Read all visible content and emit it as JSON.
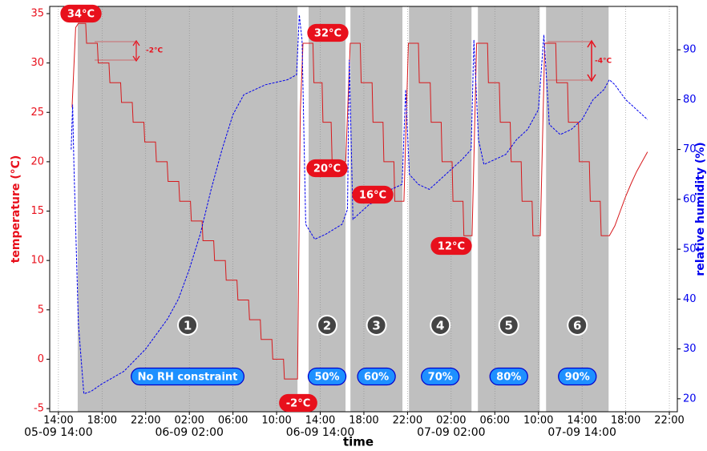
{
  "chart_data": {
    "type": "line",
    "x_label": "time",
    "y_label": "temperature (°C)",
    "y2_label": "relative humidity (%)",
    "xlim": [
      "05-09 13:12",
      "07-09 22:44"
    ],
    "xticks": [
      {
        "value": "05-09 14:00",
        "label": "14:00"
      },
      {
        "value": "05-09 18:00",
        "label": "18:00"
      },
      {
        "value": "05-09 22:00",
        "label": "22:00"
      },
      {
        "value": "06-09 02:00",
        "label": "02:00"
      },
      {
        "value": "06-09 06:00",
        "label": "06:00"
      },
      {
        "value": "06-09 10:00",
        "label": "10:00"
      },
      {
        "value": "06-09 14:00",
        "label": "14:00"
      },
      {
        "value": "06-09 18:00",
        "label": "18:00"
      },
      {
        "value": "06-09 22:00",
        "label": "22:00"
      },
      {
        "value": "07-09 02:00",
        "label": "02:00"
      },
      {
        "value": "07-09 06:00",
        "label": "06:00"
      },
      {
        "value": "07-09 10:00",
        "label": "10:00"
      },
      {
        "value": "07-09 14:00",
        "label": "14:00"
      },
      {
        "value": "07-09 18:00",
        "label": "18:00"
      },
      {
        "value": "07-09 22:00",
        "label": "22:00"
      }
    ],
    "xticks_major": [
      "05-09 14:00",
      "06-09 02:00",
      "06-09 14:00",
      "07-09 02:00",
      "07-09 14:00"
    ],
    "ylim": [
      -5.32,
      35.73
    ],
    "yticks": [
      -5,
      0,
      5,
      10,
      15,
      20,
      25,
      30,
      35
    ],
    "y2lim": [
      17.4,
      98.7
    ],
    "y2ticks": [
      20,
      30,
      40,
      50,
      60,
      70,
      80,
      90
    ],
    "grid": "x",
    "y_color": "#e8101c",
    "y2_color": "#0000ee",
    "region_color": "#bfbfbf",
    "regions": [
      {
        "start": "05-09 15:46",
        "end": "06-09 11:55",
        "number": "1",
        "label": "No RH constraint"
      },
      {
        "start": "06-09 12:56",
        "end": "06-09 16:19",
        "number": "2",
        "label": "50%"
      },
      {
        "start": "06-09 16:46",
        "end": "06-09 21:32",
        "number": "3",
        "label": "60%"
      },
      {
        "start": "06-09 22:08",
        "end": "07-09 03:52",
        "number": "4",
        "label": "70%"
      },
      {
        "start": "07-09 04:27",
        "end": "07-09 10:07",
        "number": "5",
        "label": "80%"
      },
      {
        "start": "07-09 10:42",
        "end": "07-09 16:26",
        "number": "6",
        "label": "90%"
      }
    ],
    "annotations": [
      "34°C",
      "32°C",
      "20°C",
      "16°C",
      "12°C",
      "-2°C"
    ],
    "step_annotations": [
      "-2°C",
      "-4°C"
    ],
    "series": [
      {
        "name": "temperature",
        "color": "#d7191c",
        "x": [
          "05-09 15:15",
          "05-09 15:35",
          "05-09 15:50",
          "05-09 16:30",
          "05-09 16:35",
          "05-09 17:34",
          "05-09 17:39",
          "05-09 18:38",
          "05-09 18:43",
          "05-09 19:42",
          "05-09 19:47",
          "05-09 20:46",
          "05-09 20:51",
          "05-09 21:50",
          "05-09 21:55",
          "05-09 22:54",
          "05-09 22:59",
          "05-09 23:58",
          "06-09 00:03",
          "06-09 01:02",
          "06-09 01:07",
          "06-09 02:06",
          "06-09 02:11",
          "06-09 03:10",
          "06-09 03:15",
          "06-09 04:14",
          "06-09 04:19",
          "06-09 05:18",
          "06-09 05:23",
          "06-09 06:22",
          "06-09 06:27",
          "06-09 07:26",
          "06-09 07:31",
          "06-09 08:30",
          "06-09 08:35",
          "06-09 09:34",
          "06-09 09:39",
          "06-09 10:38",
          "06-09 10:43",
          "06-09 11:55",
          "06-09 12:10",
          "06-09 12:25",
          "06-09 13:20",
          "06-09 13:25",
          "06-09 14:10",
          "06-09 14:15",
          "06-09 15:00",
          "06-09 15:05",
          "06-09 16:20",
          "06-09 16:45",
          "06-09 17:40",
          "06-09 17:45",
          "06-09 18:45",
          "06-09 18:50",
          "06-09 19:45",
          "06-09 19:50",
          "06-09 20:45",
          "06-09 20:50",
          "06-09 21:40",
          "06-09 22:05",
          "06-09 23:00",
          "06-09 23:05",
          "07-09 00:05",
          "07-09 00:10",
          "07-09 01:05",
          "07-09 01:10",
          "07-09 02:05",
          "07-09 02:10",
          "07-09 03:05",
          "07-09 03:10",
          "07-09 03:55",
          "07-09 04:20",
          "07-09 05:20",
          "07-09 05:25",
          "07-09 06:25",
          "07-09 06:30",
          "07-09 07:25",
          "07-09 07:30",
          "07-09 08:25",
          "07-09 08:30",
          "07-09 09:25",
          "07-09 09:30",
          "07-09 10:10",
          "07-09 10:35",
          "07-09 11:35",
          "07-09 11:40",
          "07-09 12:40",
          "07-09 12:45",
          "07-09 13:40",
          "07-09 13:45",
          "07-09 14:40",
          "07-09 14:45",
          "07-09 15:40",
          "07-09 15:45",
          "07-09 16:30",
          "07-09 17:00",
          "07-09 17:30",
          "07-09 18:00",
          "07-09 18:30",
          "07-09 19:00",
          "07-09 19:30",
          "07-09 20:00"
        ],
        "values": [
          25.5,
          33.6,
          34,
          34,
          32,
          32,
          30,
          30,
          28,
          28,
          26,
          26,
          24,
          24,
          22,
          22,
          20,
          20,
          18,
          18,
          16,
          16,
          14,
          14,
          12,
          12,
          10,
          10,
          8,
          8,
          6,
          6,
          4,
          4,
          2,
          2,
          0,
          0,
          -2,
          -2,
          25,
          32,
          32,
          28,
          28,
          24,
          24,
          20,
          20,
          32,
          32,
          28,
          28,
          24,
          24,
          20,
          20,
          16,
          16,
          32,
          32,
          28,
          28,
          24,
          24,
          20,
          20,
          16,
          16,
          12.5,
          12.5,
          32,
          32,
          28,
          28,
          24,
          24,
          20,
          20,
          16,
          16,
          12.5,
          12.5,
          32,
          32,
          28,
          28,
          24,
          24,
          20,
          20,
          16,
          16,
          12.5,
          12.5,
          13.5,
          15,
          16.5,
          17.8,
          19,
          20,
          21
        ]
      },
      {
        "name": "relative humidity",
        "color": "#0000ee",
        "axis": "y2",
        "x": [
          "05-09 15:10",
          "05-09 15:18",
          "05-09 15:25",
          "05-09 15:50",
          "05-09 16:20",
          "05-09 17:00",
          "05-09 18:00",
          "05-09 20:00",
          "05-09 22:00",
          "06-09 00:00",
          "06-09 01:00",
          "06-09 02:00",
          "06-09 03:00",
          "06-09 04:00",
          "06-09 05:00",
          "06-09 06:00",
          "06-09 07:00",
          "06-09 09:00",
          "06-09 11:00",
          "06-09 11:50",
          "06-09 12:05",
          "06-09 12:20",
          "06-09 12:40",
          "06-09 13:30",
          "06-09 14:30",
          "06-09 16:00",
          "06-09 16:30",
          "06-09 16:40",
          "06-09 17:00",
          "06-09 17:30",
          "06-09 18:30",
          "06-09 19:30",
          "06-09 20:30",
          "06-09 21:30",
          "06-09 21:50",
          "06-09 22:10",
          "06-09 23:00",
          "07-09 00:00",
          "07-09 01:00",
          "07-09 02:00",
          "07-09 03:00",
          "07-09 03:50",
          "07-09 04:05",
          "07-09 04:30",
          "07-09 05:00",
          "07-09 06:00",
          "07-09 07:00",
          "07-09 08:00",
          "07-09 09:00",
          "07-09 10:00",
          "07-09 10:30",
          "07-09 11:00",
          "07-09 12:00",
          "07-09 13:00",
          "07-09 14:00",
          "07-09 15:00",
          "07-09 16:00",
          "07-09 16:30",
          "07-09 17:00",
          "07-09 18:00",
          "07-09 19:00",
          "07-09 20:00"
        ],
        "values": [
          70,
          79,
          67,
          35,
          21,
          21.5,
          23,
          25.5,
          30,
          36,
          40,
          46,
          53,
          62,
          70,
          77,
          81,
          83,
          84,
          85,
          97,
          92,
          55,
          52,
          53,
          55,
          58,
          88,
          56,
          57,
          59,
          60,
          62,
          63,
          82,
          65,
          63,
          62,
          64,
          66,
          68,
          70,
          92,
          72,
          67,
          68,
          69,
          72,
          74,
          78,
          93,
          75,
          73,
          74,
          76,
          80,
          82,
          84,
          83,
          80,
          78,
          76
        ]
      }
    ]
  }
}
